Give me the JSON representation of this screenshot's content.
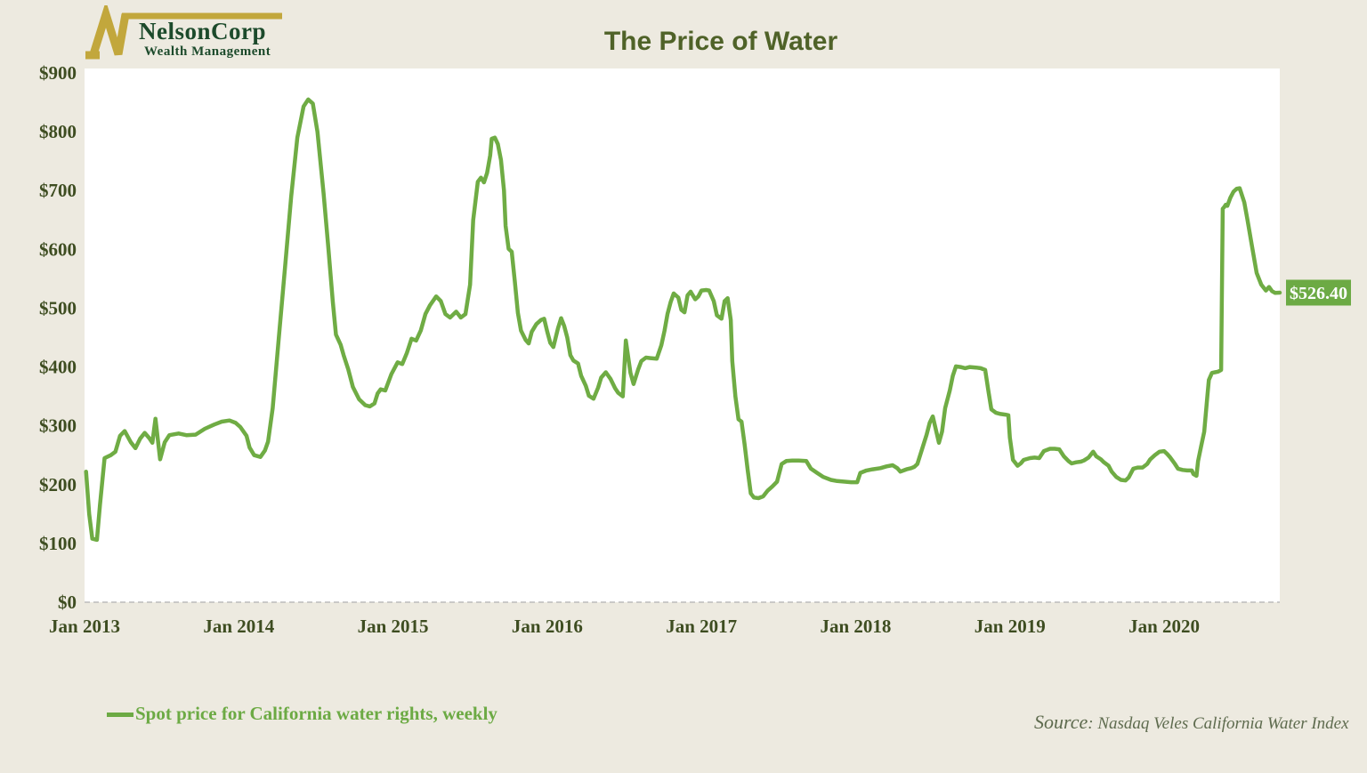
{
  "page": {
    "background": "#EDEAE0"
  },
  "logo": {
    "company": "NelsonCorp",
    "tagline": "Wealth Management",
    "mark_color": "#C2A73C",
    "text_color": "#1C4A2B"
  },
  "legend": {
    "label": "Spot price for California water rights, weekly",
    "color": "#6CAA44"
  },
  "source": {
    "prefix": "Source",
    "text": ": Nasdaq Veles California Water Index"
  },
  "chart_data": {
    "type": "line",
    "title": "The Price of Water",
    "xlabel": "",
    "ylabel": "",
    "x_range": [
      2013.0,
      2020.75
    ],
    "y_range": [
      0,
      900
    ],
    "grid": "zero-baseline-dashed-only",
    "legend_position": "bottom-left",
    "plot_background": "#FFFFFF",
    "baseline_color": "#BBBBBB",
    "y_ticks": [
      {
        "value": 0,
        "label": "$0"
      },
      {
        "value": 100,
        "label": "$100"
      },
      {
        "value": 200,
        "label": "$200"
      },
      {
        "value": 300,
        "label": "$300"
      },
      {
        "value": 400,
        "label": "$400"
      },
      {
        "value": 500,
        "label": "$500"
      },
      {
        "value": 600,
        "label": "$600"
      },
      {
        "value": 700,
        "label": "$700"
      },
      {
        "value": 800,
        "label": "$800"
      },
      {
        "value": 900,
        "label": "$900"
      }
    ],
    "x_ticks": [
      {
        "year": 2013,
        "label": "Jan 2013"
      },
      {
        "year": 2014,
        "label": "Jan 2014"
      },
      {
        "year": 2015,
        "label": "Jan 2015"
      },
      {
        "year": 2016,
        "label": "Jan 2016"
      },
      {
        "year": 2017,
        "label": "Jan 2017"
      },
      {
        "year": 2018,
        "label": "Jan 2018"
      },
      {
        "year": 2019,
        "label": "Jan 2019"
      },
      {
        "year": 2020,
        "label": "Jan 2020"
      }
    ],
    "end_label": {
      "text": "$526.40",
      "value": 526.4,
      "bg": "#6CAA44",
      "fg": "#FFFFFF"
    },
    "series": [
      {
        "name": "Spot price for California water rights, weekly",
        "color": "#6FAC44",
        "points": [
          [
            2013.01,
            222
          ],
          [
            2013.03,
            150
          ],
          [
            2013.05,
            108
          ],
          [
            2013.08,
            106
          ],
          [
            2013.1,
            165
          ],
          [
            2013.13,
            245
          ],
          [
            2013.17,
            250
          ],
          [
            2013.2,
            256
          ],
          [
            2013.23,
            283
          ],
          [
            2013.26,
            291
          ],
          [
            2013.3,
            272
          ],
          [
            2013.33,
            262
          ],
          [
            2013.36,
            278
          ],
          [
            2013.39,
            288
          ],
          [
            2013.42,
            279
          ],
          [
            2013.44,
            271
          ],
          [
            2013.46,
            312
          ],
          [
            2013.49,
            243
          ],
          [
            2013.52,
            272
          ],
          [
            2013.55,
            284
          ],
          [
            2013.61,
            287
          ],
          [
            2013.66,
            284
          ],
          [
            2013.72,
            285
          ],
          [
            2013.78,
            295
          ],
          [
            2013.84,
            302
          ],
          [
            2013.89,
            307
          ],
          [
            2013.94,
            309
          ],
          [
            2013.98,
            305
          ],
          [
            2014.01,
            298
          ],
          [
            2014.05,
            283
          ],
          [
            2014.07,
            263
          ],
          [
            2014.1,
            250
          ],
          [
            2014.14,
            247
          ],
          [
            2014.17,
            258
          ],
          [
            2014.19,
            273
          ],
          [
            2014.22,
            330
          ],
          [
            2014.26,
            450
          ],
          [
            2014.3,
            570
          ],
          [
            2014.34,
            690
          ],
          [
            2014.38,
            790
          ],
          [
            2014.42,
            843
          ],
          [
            2014.45,
            855
          ],
          [
            2014.48,
            848
          ],
          [
            2014.51,
            800
          ],
          [
            2014.55,
            695
          ],
          [
            2014.58,
            605
          ],
          [
            2014.61,
            510
          ],
          [
            2014.63,
            455
          ],
          [
            2014.66,
            438
          ],
          [
            2014.68,
            420
          ],
          [
            2014.71,
            396
          ],
          [
            2014.74,
            366
          ],
          [
            2014.78,
            345
          ],
          [
            2014.82,
            335
          ],
          [
            2014.85,
            333
          ],
          [
            2014.88,
            338
          ],
          [
            2014.9,
            355
          ],
          [
            2014.92,
            362
          ],
          [
            2014.95,
            360
          ],
          [
            2014.99,
            388
          ],
          [
            2015.03,
            408
          ],
          [
            2015.06,
            405
          ],
          [
            2015.09,
            424
          ],
          [
            2015.12,
            448
          ],
          [
            2015.15,
            445
          ],
          [
            2015.18,
            462
          ],
          [
            2015.21,
            490
          ],
          [
            2015.24,
            505
          ],
          [
            2015.28,
            520
          ],
          [
            2015.31,
            512
          ],
          [
            2015.34,
            490
          ],
          [
            2015.37,
            484
          ],
          [
            2015.41,
            494
          ],
          [
            2015.44,
            484
          ],
          [
            2015.47,
            490
          ],
          [
            2015.5,
            540
          ],
          [
            2015.52,
            650
          ],
          [
            2015.55,
            715
          ],
          [
            2015.57,
            722
          ],
          [
            2015.59,
            714
          ],
          [
            2015.61,
            730
          ],
          [
            2015.63,
            760
          ],
          [
            2015.64,
            788
          ],
          [
            2015.66,
            790
          ],
          [
            2015.68,
            779
          ],
          [
            2015.7,
            752
          ],
          [
            2015.72,
            700
          ],
          [
            2015.73,
            640
          ],
          [
            2015.75,
            601
          ],
          [
            2015.77,
            596
          ],
          [
            2015.79,
            545
          ],
          [
            2015.81,
            492
          ],
          [
            2015.83,
            462
          ],
          [
            2015.86,
            446
          ],
          [
            2015.88,
            440
          ],
          [
            2015.9,
            460
          ],
          [
            2015.93,
            473
          ],
          [
            2015.96,
            480
          ],
          [
            2015.98,
            482
          ],
          [
            2016.0,
            460
          ],
          [
            2016.02,
            441
          ],
          [
            2016.04,
            434
          ],
          [
            2016.07,
            466
          ],
          [
            2016.09,
            483
          ],
          [
            2016.11,
            470
          ],
          [
            2016.13,
            450
          ],
          [
            2016.15,
            420
          ],
          [
            2016.17,
            411
          ],
          [
            2016.2,
            406
          ],
          [
            2016.22,
            385
          ],
          [
            2016.25,
            368
          ],
          [
            2016.27,
            351
          ],
          [
            2016.3,
            346
          ],
          [
            2016.33,
            365
          ],
          [
            2016.35,
            382
          ],
          [
            2016.38,
            391
          ],
          [
            2016.41,
            380
          ],
          [
            2016.44,
            364
          ],
          [
            2016.46,
            356
          ],
          [
            2016.49,
            350
          ],
          [
            2016.51,
            445
          ],
          [
            2016.54,
            390
          ],
          [
            2016.56,
            371
          ],
          [
            2016.59,
            396
          ],
          [
            2016.61,
            410
          ],
          [
            2016.64,
            416
          ],
          [
            2016.67,
            415
          ],
          [
            2016.71,
            414
          ],
          [
            2016.74,
            437
          ],
          [
            2016.76,
            461
          ],
          [
            2016.78,
            490
          ],
          [
            2016.8,
            510
          ],
          [
            2016.82,
            525
          ],
          [
            2016.85,
            518
          ],
          [
            2016.87,
            497
          ],
          [
            2016.89,
            493
          ],
          [
            2016.91,
            522
          ],
          [
            2016.93,
            528
          ],
          [
            2016.96,
            515
          ],
          [
            2016.98,
            520
          ],
          [
            2017.0,
            530
          ],
          [
            2017.03,
            531
          ],
          [
            2017.05,
            530
          ],
          [
            2017.08,
            512
          ],
          [
            2017.1,
            488
          ],
          [
            2017.13,
            482
          ],
          [
            2017.15,
            512
          ],
          [
            2017.17,
            517
          ],
          [
            2017.19,
            480
          ],
          [
            2017.2,
            410
          ],
          [
            2017.22,
            350
          ],
          [
            2017.24,
            311
          ],
          [
            2017.26,
            307
          ],
          [
            2017.28,
            268
          ],
          [
            2017.3,
            225
          ],
          [
            2017.32,
            185
          ],
          [
            2017.34,
            178
          ],
          [
            2017.37,
            177
          ],
          [
            2017.4,
            180
          ],
          [
            2017.43,
            190
          ],
          [
            2017.46,
            197
          ],
          [
            2017.49,
            205
          ],
          [
            2017.52,
            235
          ],
          [
            2017.55,
            240
          ],
          [
            2017.59,
            241
          ],
          [
            2017.63,
            241
          ],
          [
            2017.68,
            240
          ],
          [
            2017.71,
            227
          ],
          [
            2017.75,
            220
          ],
          [
            2017.79,
            213
          ],
          [
            2017.84,
            208
          ],
          [
            2017.88,
            206
          ],
          [
            2017.93,
            205
          ],
          [
            2017.97,
            204
          ],
          [
            2018.01,
            204
          ],
          [
            2018.03,
            220
          ],
          [
            2018.07,
            224
          ],
          [
            2018.11,
            226
          ],
          [
            2018.16,
            228
          ],
          [
            2018.2,
            231
          ],
          [
            2018.24,
            233
          ],
          [
            2018.27,
            228
          ],
          [
            2018.29,
            222
          ],
          [
            2018.33,
            226
          ],
          [
            2018.36,
            228
          ],
          [
            2018.38,
            230
          ],
          [
            2018.4,
            235
          ],
          [
            2018.43,
            260
          ],
          [
            2018.46,
            285
          ],
          [
            2018.48,
            305
          ],
          [
            2018.5,
            316
          ],
          [
            2018.54,
            271
          ],
          [
            2018.56,
            290
          ],
          [
            2018.58,
            330
          ],
          [
            2018.61,
            360
          ],
          [
            2018.63,
            385
          ],
          [
            2018.65,
            401
          ],
          [
            2018.68,
            400
          ],
          [
            2018.71,
            398
          ],
          [
            2018.74,
            400
          ],
          [
            2018.78,
            399
          ],
          [
            2018.81,
            398
          ],
          [
            2018.84,
            395
          ],
          [
            2018.86,
            360
          ],
          [
            2018.88,
            328
          ],
          [
            2018.91,
            322
          ],
          [
            2018.94,
            320
          ],
          [
            2018.97,
            319
          ],
          [
            2018.99,
            318
          ],
          [
            2019.0,
            280
          ],
          [
            2019.02,
            242
          ],
          [
            2019.05,
            232
          ],
          [
            2019.07,
            236
          ],
          [
            2019.09,
            242
          ],
          [
            2019.13,
            245
          ],
          [
            2019.16,
            246
          ],
          [
            2019.19,
            245
          ],
          [
            2019.22,
            257
          ],
          [
            2019.26,
            261
          ],
          [
            2019.29,
            261
          ],
          [
            2019.32,
            260
          ],
          [
            2019.35,
            248
          ],
          [
            2019.38,
            240
          ],
          [
            2019.4,
            236
          ],
          [
            2019.43,
            238
          ],
          [
            2019.46,
            239
          ],
          [
            2019.48,
            241
          ],
          [
            2019.51,
            246
          ],
          [
            2019.54,
            256
          ],
          [
            2019.56,
            248
          ],
          [
            2019.59,
            243
          ],
          [
            2019.61,
            238
          ],
          [
            2019.64,
            232
          ],
          [
            2019.66,
            222
          ],
          [
            2019.69,
            213
          ],
          [
            2019.72,
            208
          ],
          [
            2019.75,
            207
          ],
          [
            2019.77,
            212
          ],
          [
            2019.8,
            227
          ],
          [
            2019.83,
            229
          ],
          [
            2019.86,
            229
          ],
          [
            2019.89,
            235
          ],
          [
            2019.91,
            243
          ],
          [
            2019.94,
            250
          ],
          [
            2019.97,
            256
          ],
          [
            2020.0,
            257
          ],
          [
            2020.02,
            252
          ],
          [
            2020.04,
            246
          ],
          [
            2020.07,
            235
          ],
          [
            2020.09,
            227
          ],
          [
            2020.12,
            225
          ],
          [
            2020.15,
            224
          ],
          [
            2020.18,
            224
          ],
          [
            2020.19,
            218
          ],
          [
            2020.21,
            215
          ],
          [
            2020.22,
            240
          ],
          [
            2020.24,
            265
          ],
          [
            2020.26,
            290
          ],
          [
            2020.28,
            350
          ],
          [
            2020.29,
            378
          ],
          [
            2020.31,
            390
          ],
          [
            2020.33,
            391
          ],
          [
            2020.35,
            392
          ],
          [
            2020.37,
            395
          ],
          [
            2020.38,
            669
          ],
          [
            2020.39,
            672
          ],
          [
            2020.4,
            676
          ],
          [
            2020.41,
            674
          ],
          [
            2020.43,
            688
          ],
          [
            2020.45,
            698
          ],
          [
            2020.47,
            703
          ],
          [
            2020.49,
            704
          ],
          [
            2020.52,
            680
          ],
          [
            2020.54,
            651
          ],
          [
            2020.57,
            605
          ],
          [
            2020.6,
            560
          ],
          [
            2020.63,
            540
          ],
          [
            2020.66,
            530
          ],
          [
            2020.68,
            536
          ],
          [
            2020.7,
            529
          ],
          [
            2020.72,
            526
          ],
          [
            2020.75,
            526.4
          ]
        ]
      }
    ]
  }
}
